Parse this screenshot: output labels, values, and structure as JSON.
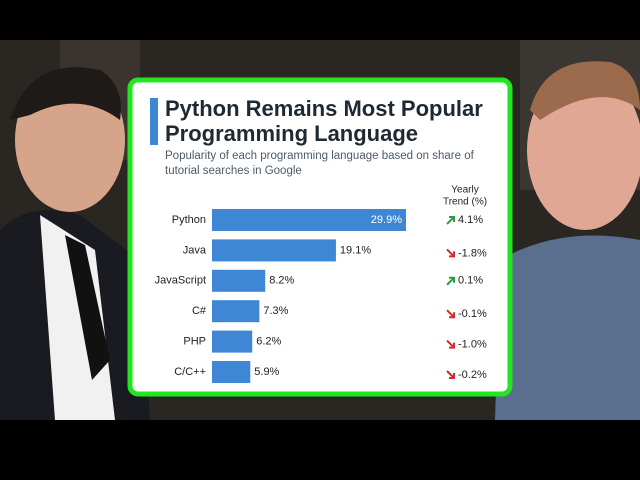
{
  "chart_data": {
    "type": "bar",
    "orientation": "horizontal",
    "title": "Python Remains Most Popular Programming Language",
    "subtitle": "Popularity of each programming language based on share of tutorial searches in Google",
    "categories": [
      "Python",
      "Java",
      "JavaScript",
      "C#",
      "PHP",
      "C/C++"
    ],
    "values": [
      29.9,
      19.1,
      8.2,
      7.3,
      6.2,
      5.9
    ],
    "value_labels": [
      "29.9%",
      "19.1%",
      "8.2%",
      "7.3%",
      "6.2%",
      "5.9%"
    ],
    "color": "#3d87d4",
    "trend_header": [
      "Yearly",
      "Trend (%)"
    ],
    "trend": {
      "values": [
        4.1,
        -1.8,
        0.1,
        -0.1,
        -1.0,
        -0.2
      ],
      "value_labels": [
        "4.1%",
        "-1.8%",
        "0.1%",
        "-0.1%",
        "-1.0%",
        "-0.2%"
      ],
      "up_color": "#2e9c3a",
      "down_color": "#d62828"
    }
  }
}
